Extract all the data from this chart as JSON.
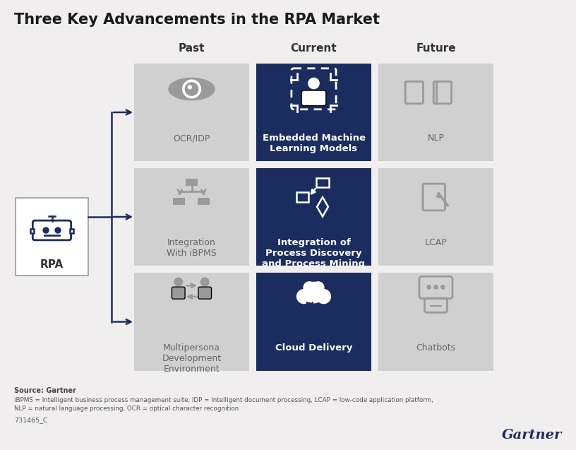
{
  "title": "Three Key Advancements in the RPA Market",
  "title_fontsize": 15,
  "title_color": "#1a1a1a",
  "bg_color": "#f0eeee",
  "dark_navy": "#1b2d5f",
  "light_gray": "#d0d0d0",
  "white": "#ffffff",
  "text_dark": "#333333",
  "text_white": "#ffffff",
  "text_gray": "#666666",
  "column_headers": [
    "Past",
    "Current",
    "Future"
  ],
  "rpa_label": "RPA",
  "rows": [
    {
      "past_label": "OCR/IDP",
      "current_label": "Embedded Machine\nLearning Models",
      "future_label": "NLP"
    },
    {
      "past_label": "Integration\nWith iBPMS",
      "current_label": "Integration of\nProcess Discovery\nand Process Mining",
      "future_label": "LCAP"
    },
    {
      "past_label": "Multipersona\nDevelopment\nEnvironment",
      "current_label": "Cloud Delivery",
      "future_label": "Chatbots"
    }
  ],
  "source_text": "Source: Gartner",
  "footnote1": "iBPMS = Intelligent business process management suite, IDP = Intelligent document processing, LCAP = low-code application platform,",
  "footnote2": "NLP = natural language processing, OCR = optical character recognition",
  "footnote3": "731465_C",
  "gartner_text": "Gartner",
  "arrow_color": "#1b2d5f",
  "icon_gray": "#9a9a9a"
}
